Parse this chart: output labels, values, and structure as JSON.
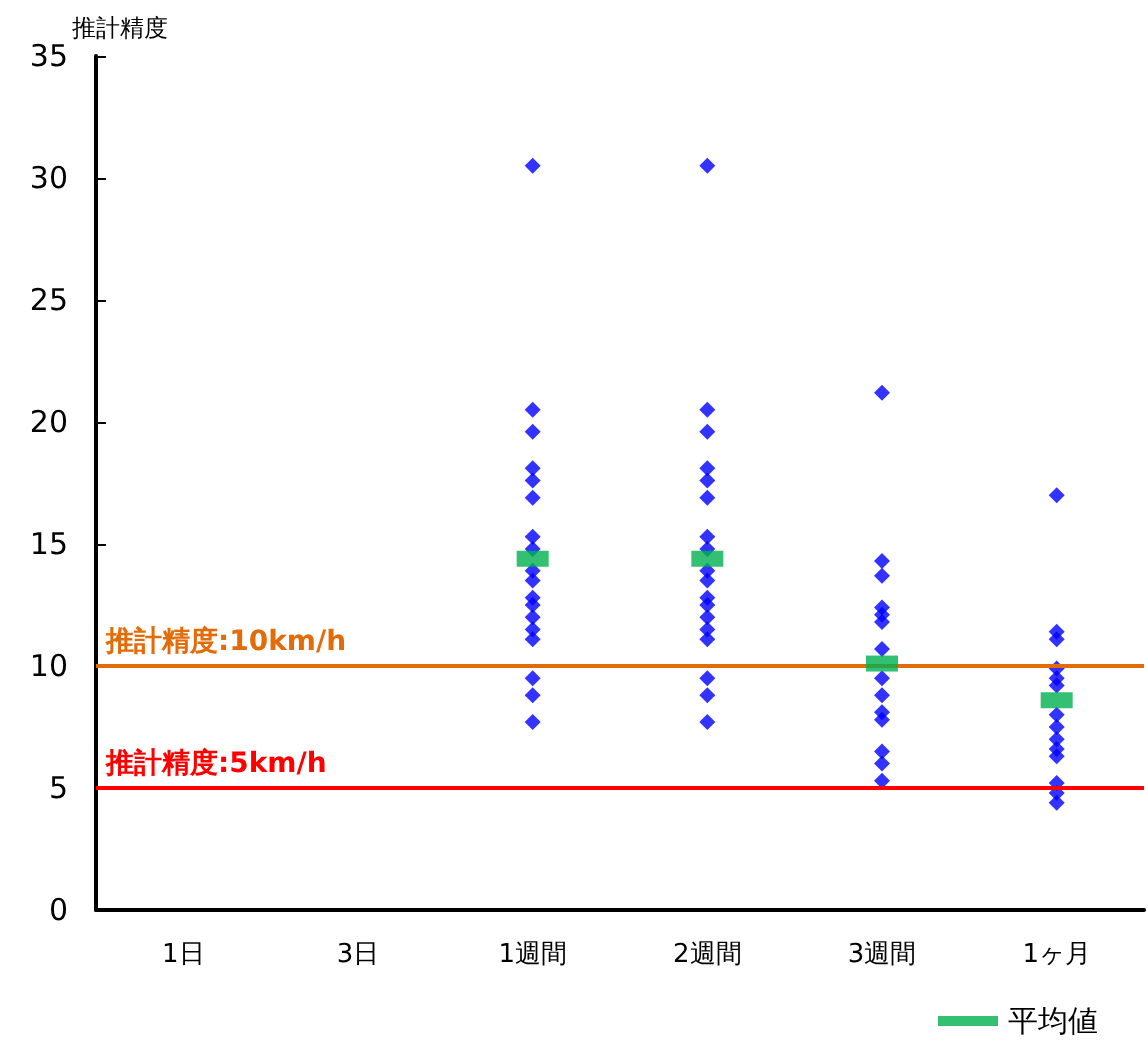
{
  "chart_data": {
    "type": "scatter",
    "ylabel": "推計精度",
    "categories": [
      "1日",
      "3日",
      "1週間",
      "2週間",
      "3週間",
      "1ヶ月"
    ],
    "ylim": [
      0,
      35
    ],
    "yticks": [
      0,
      5,
      10,
      15,
      20,
      25,
      30,
      35
    ],
    "grid": false,
    "legend": "bottom right",
    "series": [
      {
        "color": "#0000ff",
        "marker": "diamond",
        "x": [
          "1週間",
          "1週間",
          "1週間",
          "1週間",
          "1週間",
          "1週間",
          "1週間",
          "1週間",
          "1週間",
          "1週間",
          "1週間",
          "1週間",
          "1週間",
          "1週間",
          "1週間",
          "1週間",
          "1週間",
          "1週間",
          "2週間",
          "2週間",
          "2週間",
          "2週間",
          "2週間",
          "2週間",
          "2週間",
          "2週間",
          "2週間",
          "2週間",
          "2週間",
          "2週間",
          "2週間",
          "2週間",
          "2週間",
          "2週間",
          "2週間",
          "2週間",
          "3週間",
          "3週間",
          "3週間",
          "3週間",
          "3週間",
          "3週間",
          "3週間",
          "3週間",
          "3週間",
          "3週間",
          "3週間",
          "3週間",
          "3週間",
          "3週間",
          "1ヶ月",
          "1ヶ月",
          "1ヶ月",
          "1ヶ月",
          "1ヶ月",
          "1ヶ月",
          "1ヶ月",
          "1ヶ月",
          "1ヶ月",
          "1ヶ月",
          "1ヶ月",
          "1ヶ月",
          "1ヶ月",
          "1ヶ月"
        ],
        "values": [
          30.5,
          20.5,
          19.6,
          18.1,
          17.6,
          16.9,
          15.3,
          14.8,
          13.9,
          13.5,
          12.8,
          12.5,
          12,
          11.5,
          11.1,
          9.5,
          8.8,
          7.7,
          30.5,
          20.5,
          19.6,
          18.1,
          17.6,
          16.9,
          15.3,
          14.8,
          13.9,
          13.5,
          12.8,
          12.5,
          12,
          11.5,
          11.1,
          9.5,
          8.8,
          7.7,
          21.2,
          14.3,
          13.7,
          12.4,
          12.1,
          11.8,
          10.7,
          9.5,
          8.8,
          8.1,
          7.8,
          6.5,
          6,
          5.3,
          17,
          11.4,
          11.1,
          9.9,
          9.5,
          9.2,
          8,
          7.5,
          7,
          6.6,
          6.3,
          5.2,
          4.8,
          4.4
        ]
      },
      {
        "name": "平均値",
        "color": "#00b050",
        "marker": "square",
        "x": [
          "1週間",
          "2週間",
          "3週間",
          "1ヶ月"
        ],
        "values": [
          14.4,
          14.4,
          10.1,
          8.6
        ]
      }
    ],
    "ref_lines": [
      {
        "axis": "y",
        "value": 10,
        "label": "推計精度:10km/h",
        "color": "#e36c09"
      },
      {
        "axis": "y",
        "value": 5,
        "label": "推計精度:5km/h",
        "color": "#ff0000"
      }
    ]
  }
}
